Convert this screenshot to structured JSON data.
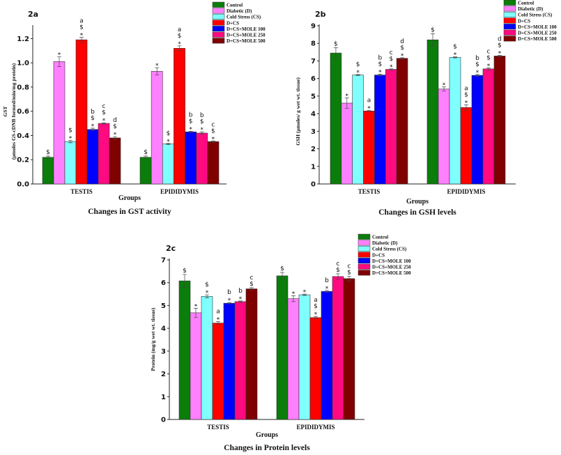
{
  "legend": [
    "Control",
    "Diabetic (D)",
    "Cold Stress (CS)",
    "D+CS",
    "D+CS+MOLE 100",
    "D+CS+MOLE 250",
    "D+CS+MOLE 500"
  ],
  "colors": [
    "#0a7d0a",
    "#ff80ff",
    "#80ffff",
    "#ff0000",
    "#0000ff",
    "#ff0a80",
    "#800000"
  ],
  "chart_data": [
    {
      "type": "bar",
      "panel": "2a",
      "title": "Changes in GST activity",
      "xlabel": "Groups",
      "ylabel": [
        "GST",
        "(µmoles GS-cDNB formed/min/mg protein)"
      ],
      "ylim": [
        0,
        1.3
      ],
      "yticks": [
        "0.0",
        "0.2",
        "0.4",
        "0.6",
        "0.8",
        "1.0",
        "1.2"
      ],
      "categories": [
        "TESTIS",
        "EPIDIDYMIS"
      ],
      "series": [
        {
          "name": "Control",
          "values": [
            0.22,
            0.22
          ],
          "errors": [
            0.01,
            0.01
          ],
          "annotations": [
            "$",
            "$"
          ]
        },
        {
          "name": "Diabetic (D)",
          "values": [
            1.01,
            0.93
          ],
          "errors": [
            0.04,
            0.03
          ],
          "annotations": [
            "*",
            "*"
          ]
        },
        {
          "name": "Cold Stress (CS)",
          "values": [
            0.35,
            0.33
          ],
          "errors": [
            0.01,
            0.005
          ],
          "annotations": [
            "$ *",
            "$ *"
          ]
        },
        {
          "name": "D+CS",
          "values": [
            1.19,
            1.12
          ],
          "errors": [
            0.02,
            0.02
          ],
          "annotations": [
            "a $ *",
            "a $ *"
          ]
        },
        {
          "name": "D+CS+MOLE 100",
          "values": [
            0.45,
            0.43
          ],
          "errors": [
            0.01,
            0.005
          ],
          "annotations": [
            "b $ *",
            "b $ *"
          ]
        },
        {
          "name": "D+CS+MOLE 250",
          "values": [
            0.5,
            0.42
          ],
          "errors": [
            0.005,
            0.01
          ],
          "annotations": [
            "c $ *",
            "b $ *"
          ]
        },
        {
          "name": "D+CS+MOLE 500",
          "values": [
            0.38,
            0.35
          ],
          "errors": [
            0.01,
            0.005
          ],
          "annotations": [
            "d $ *",
            "c $ *"
          ]
        }
      ]
    },
    {
      "type": "bar",
      "panel": "2b",
      "title": "Changes in GSH levels",
      "xlabel": "Groups",
      "ylabel": [
        "GSH (µmoles/ g wet wt. tissue)"
      ],
      "ylim": [
        0,
        9
      ],
      "yticks": [
        "0",
        "1",
        "2",
        "3",
        "4",
        "5",
        "6",
        "7",
        "8",
        "9"
      ],
      "categories": [
        "TESTIS",
        "EPIDIDYMIS"
      ],
      "series": [
        {
          "name": "Control",
          "values": [
            7.45,
            8.2
          ],
          "errors": [
            0.3,
            0.35
          ],
          "annotations": [
            "$",
            "$"
          ]
        },
        {
          "name": "Diabetic (D)",
          "values": [
            4.6,
            5.4
          ],
          "errors": [
            0.3,
            0.12
          ],
          "annotations": [
            "*",
            "*"
          ]
        },
        {
          "name": "Cold Stress (CS)",
          "values": [
            6.2,
            7.2
          ],
          "errors": [
            0.03,
            0.03
          ],
          "annotations": [
            "$ *",
            "$ *"
          ]
        },
        {
          "name": "D+CS",
          "values": [
            4.15,
            4.35
          ],
          "errors": [
            0.03,
            0.15
          ],
          "annotations": [
            "a *",
            "a $ *"
          ]
        },
        {
          "name": "D+CS+MOLE 100",
          "values": [
            6.2,
            6.18
          ],
          "errors": [
            0.05,
            0.05
          ],
          "annotations": [
            "b $ *",
            "b $ *"
          ]
        },
        {
          "name": "D+CS+MOLE 250",
          "values": [
            6.52,
            6.55
          ],
          "errors": [
            0.03,
            0.06
          ],
          "annotations": [
            "c $ *",
            "c $ *"
          ]
        },
        {
          "name": "D+CS+MOLE 500",
          "values": [
            7.15,
            7.28
          ],
          "errors": [
            0.03,
            0.03
          ],
          "annotations": [
            "d $ *",
            "d $ *"
          ]
        }
      ]
    },
    {
      "type": "bar",
      "panel": "2c",
      "title": "Changes in Protein levels",
      "xlabel": "Groups",
      "ylabel": [
        "Protein (mg/g wet wt. tissue)"
      ],
      "ylim": [
        0,
        7
      ],
      "yticks": [
        "0",
        "1",
        "2",
        "3",
        "4",
        "5",
        "6",
        "7"
      ],
      "categories": [
        "TESTIS",
        "EPIDIDYMIS"
      ],
      "series": [
        {
          "name": "Control",
          "values": [
            6.08,
            6.3
          ],
          "errors": [
            0.28,
            0.15
          ],
          "annotations": [
            "$",
            "$"
          ]
        },
        {
          "name": "Diabetic (D)",
          "values": [
            4.68,
            5.3
          ],
          "errors": [
            0.2,
            0.13
          ],
          "annotations": [
            "*",
            "*"
          ]
        },
        {
          "name": "Cold Stress (CS)",
          "values": [
            5.4,
            5.47
          ],
          "errors": [
            0.07,
            0.03
          ],
          "annotations": [
            "$ *",
            "*"
          ]
        },
        {
          "name": "D+CS",
          "values": [
            4.23,
            4.47
          ],
          "errors": [
            0.06,
            0.05
          ],
          "annotations": [
            "a *",
            "a $ *"
          ]
        },
        {
          "name": "D+CS+MOLE 100",
          "values": [
            5.1,
            5.62
          ],
          "errors": [
            0.03,
            0.04
          ],
          "annotations": [
            "b *",
            "b *"
          ]
        },
        {
          "name": "D+CS+MOLE 250",
          "values": [
            5.17,
            6.27
          ],
          "errors": [
            0.03,
            0.12
          ],
          "annotations": [
            "b *",
            "c $"
          ]
        },
        {
          "name": "D+CS+MOLE 500",
          "values": [
            5.73,
            6.18
          ],
          "errors": [
            0.05,
            0.1
          ],
          "annotations": [
            "c $",
            "c $"
          ]
        }
      ]
    }
  ]
}
